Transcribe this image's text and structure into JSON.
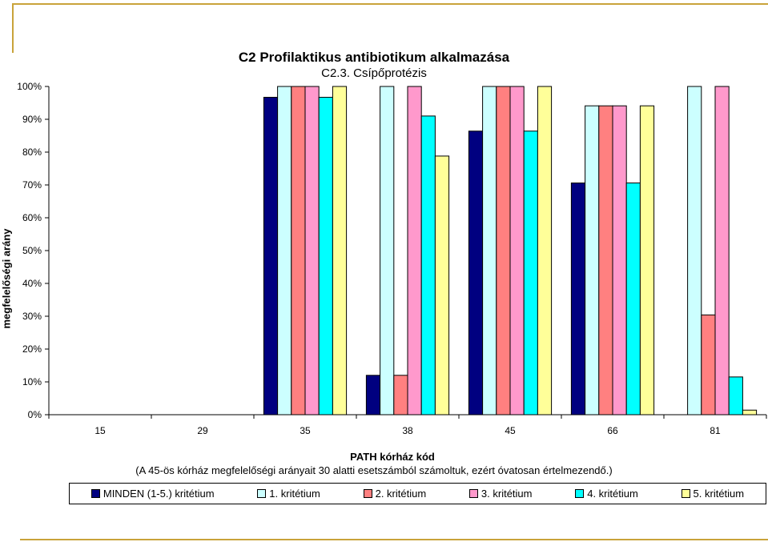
{
  "chart_data": {
    "type": "bar",
    "title": "C2 Profilaktikus antibiotikum alkalmazása",
    "subtitle": "C2.3. Csípőprotézis",
    "xlabel": "PATH kórház kód",
    "xnote": "(A 45-ös  kórház megfelelőségi arányait 30 alatti esetszámból számoltuk, ezért óvatosan értelmezendő.)",
    "ylabel": "megfelelőségi arány",
    "ylim": [
      0,
      1
    ],
    "yticks": [
      "0%",
      "10%",
      "20%",
      "30%",
      "40%",
      "50%",
      "60%",
      "70%",
      "80%",
      "90%",
      "100%"
    ],
    "categories": [
      "15",
      "29",
      "35",
      "38",
      "45",
      "66",
      "81"
    ],
    "series": [
      {
        "name": "MINDEN (1-5.) kritétium",
        "color": "#000080",
        "values": [
          null,
          null,
          0.967,
          0.12,
          0.864,
          0.706,
          null
        ]
      },
      {
        "name": "1. kritétium",
        "color": "#ccffff",
        "values": [
          null,
          null,
          1.0,
          1.0,
          1.0,
          0.941,
          1.0
        ]
      },
      {
        "name": "2. kritétium",
        "color": "#ff8080",
        "values": [
          null,
          null,
          1.0,
          0.12,
          1.0,
          0.941,
          0.304
        ]
      },
      {
        "name": "3. kritétium",
        "color": "#ff99cc",
        "values": [
          null,
          null,
          1.0,
          1.0,
          1.0,
          0.941,
          1.0
        ]
      },
      {
        "name": "4. kritétium",
        "color": "#00ffff",
        "values": [
          null,
          null,
          0.967,
          0.91,
          0.864,
          0.706,
          0.115
        ]
      },
      {
        "name": "5. kritétium",
        "color": "#ffff99",
        "values": [
          null,
          null,
          1.0,
          0.788,
          1.0,
          0.941,
          0.014
        ]
      }
    ],
    "grid": false,
    "legend": "bottom"
  }
}
